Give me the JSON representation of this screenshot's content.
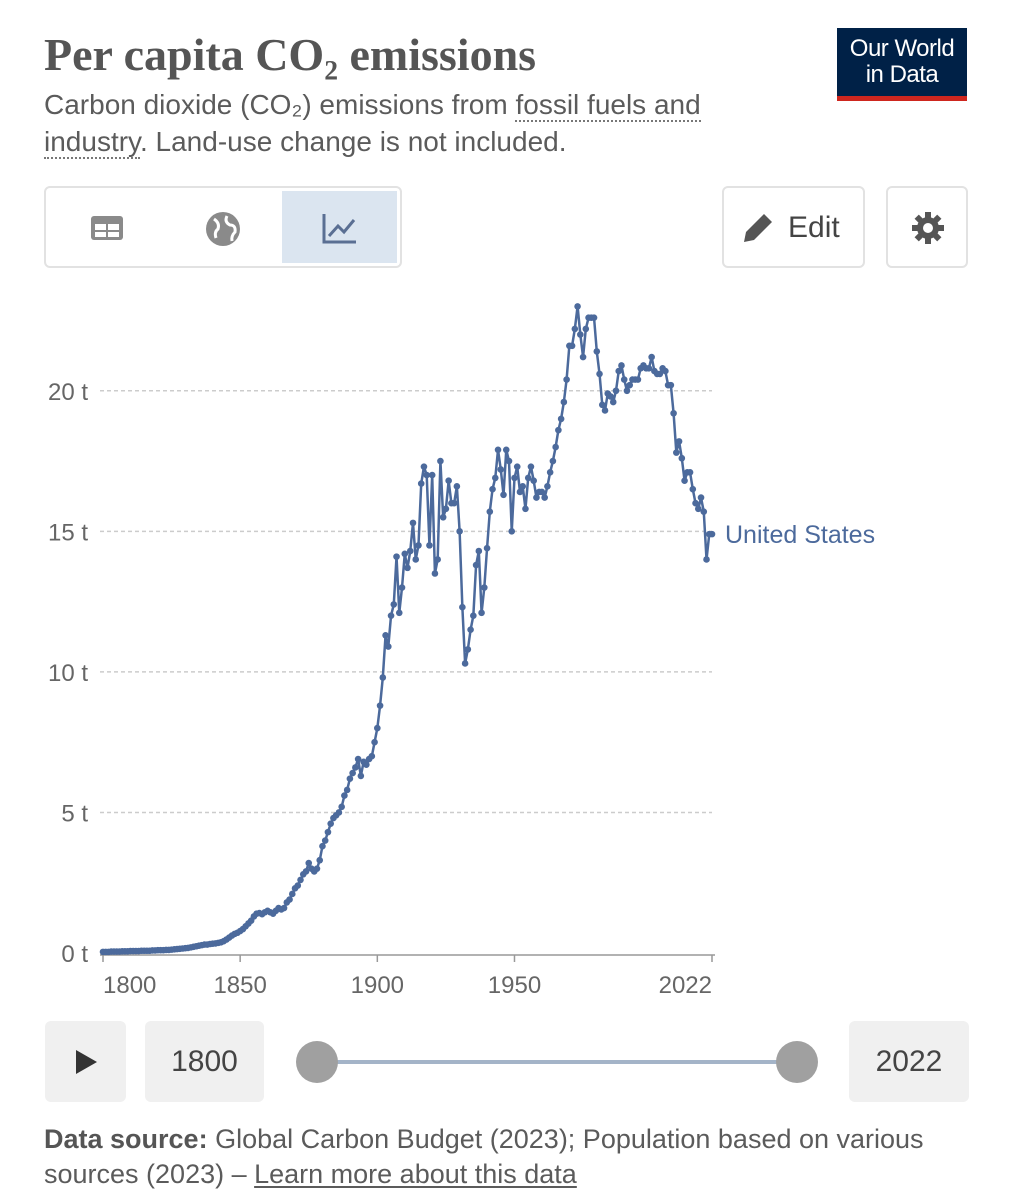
{
  "chart_data": {
    "type": "line",
    "title": "Per capita CO₂ emissions",
    "subtitle_parts": [
      "Carbon dioxide (CO₂) emissions from ",
      "fossil fuels and industry",
      ". Land-use change is not included."
    ],
    "source_label": "Data source:",
    "source_text": "Global Carbon Budget (2023); Population based on various sources (2023) – ",
    "source_link": "Learn more about this data",
    "xlim": [
      1800,
      2022
    ],
    "xticks": [
      1800,
      1850,
      1900,
      1950,
      2022
    ],
    "ylim": [
      0,
      23.3
    ],
    "yticks": [
      {
        "value": 0,
        "label": "0 t"
      },
      {
        "value": 5,
        "label": "5 t"
      },
      {
        "value": 10,
        "label": "10 t"
      },
      {
        "value": 15,
        "label": "15 t"
      },
      {
        "value": 20,
        "label": "20 t"
      }
    ],
    "grid": true,
    "x": [
      1800,
      1801,
      1802,
      1803,
      1804,
      1805,
      1806,
      1807,
      1808,
      1809,
      1810,
      1811,
      1812,
      1813,
      1814,
      1815,
      1816,
      1817,
      1818,
      1819,
      1820,
      1821,
      1822,
      1823,
      1824,
      1825,
      1826,
      1827,
      1828,
      1829,
      1830,
      1831,
      1832,
      1833,
      1834,
      1835,
      1836,
      1837,
      1838,
      1839,
      1840,
      1841,
      1842,
      1843,
      1844,
      1845,
      1846,
      1847,
      1848,
      1849,
      1850,
      1851,
      1852,
      1853,
      1854,
      1855,
      1856,
      1857,
      1858,
      1859,
      1860,
      1861,
      1862,
      1863,
      1864,
      1865,
      1866,
      1867,
      1868,
      1869,
      1870,
      1871,
      1872,
      1873,
      1874,
      1875,
      1876,
      1877,
      1878,
      1879,
      1880,
      1881,
      1882,
      1883,
      1884,
      1885,
      1886,
      1887,
      1888,
      1889,
      1890,
      1891,
      1892,
      1893,
      1894,
      1895,
      1896,
      1897,
      1898,
      1899,
      1900,
      1901,
      1902,
      1903,
      1904,
      1905,
      1906,
      1907,
      1908,
      1909,
      1910,
      1911,
      1912,
      1913,
      1914,
      1915,
      1916,
      1917,
      1918,
      1919,
      1920,
      1921,
      1922,
      1923,
      1924,
      1925,
      1926,
      1927,
      1928,
      1929,
      1930,
      1931,
      1932,
      1933,
      1934,
      1935,
      1936,
      1937,
      1938,
      1939,
      1940,
      1941,
      1942,
      1943,
      1944,
      1945,
      1946,
      1947,
      1948,
      1949,
      1950,
      1951,
      1952,
      1953,
      1954,
      1955,
      1956,
      1957,
      1958,
      1959,
      1960,
      1961,
      1962,
      1963,
      1964,
      1965,
      1966,
      1967,
      1968,
      1969,
      1970,
      1971,
      1972,
      1973,
      1974,
      1975,
      1976,
      1977,
      1978,
      1979,
      1980,
      1981,
      1982,
      1983,
      1984,
      1985,
      1986,
      1987,
      1988,
      1989,
      1990,
      1991,
      1992,
      1993,
      1994,
      1995,
      1996,
      1997,
      1998,
      1999,
      2000,
      2001,
      2002,
      2003,
      2004,
      2005,
      2006,
      2007,
      2008,
      2009,
      2010,
      2011,
      2012,
      2013,
      2014,
      2015,
      2016,
      2017,
      2018,
      2019,
      2020,
      2021,
      2022
    ],
    "series": [
      {
        "name": "United States",
        "color": "#4c6a9c",
        "values": [
          0.04,
          0.04,
          0.04,
          0.05,
          0.05,
          0.05,
          0.05,
          0.06,
          0.06,
          0.06,
          0.07,
          0.07,
          0.07,
          0.07,
          0.08,
          0.08,
          0.08,
          0.08,
          0.09,
          0.09,
          0.1,
          0.1,
          0.1,
          0.11,
          0.11,
          0.12,
          0.13,
          0.14,
          0.15,
          0.16,
          0.17,
          0.18,
          0.2,
          0.22,
          0.24,
          0.26,
          0.28,
          0.3,
          0.3,
          0.32,
          0.33,
          0.34,
          0.36,
          0.38,
          0.42,
          0.48,
          0.55,
          0.62,
          0.68,
          0.72,
          0.78,
          0.85,
          0.95,
          1.05,
          1.15,
          1.3,
          1.4,
          1.42,
          1.38,
          1.45,
          1.5,
          1.45,
          1.4,
          1.5,
          1.6,
          1.55,
          1.6,
          1.8,
          1.9,
          2.1,
          2.3,
          2.4,
          2.6,
          2.8,
          2.9,
          3.2,
          3.0,
          2.9,
          3.0,
          3.3,
          3.8,
          4.0,
          4.3,
          4.6,
          4.8,
          4.9,
          5.0,
          5.2,
          5.6,
          5.8,
          6.2,
          6.4,
          6.6,
          6.9,
          6.3,
          6.8,
          6.7,
          6.9,
          7.0,
          7.5,
          8.0,
          8.8,
          9.8,
          11.3,
          10.9,
          12.0,
          12.4,
          14.1,
          12.1,
          13.0,
          14.2,
          13.7,
          14.3,
          15.3,
          14.0,
          14.5,
          16.7,
          17.3,
          17.0,
          14.5,
          17.0,
          13.5,
          14.0,
          17.5,
          15.5,
          15.8,
          16.8,
          16.0,
          16.0,
          16.6,
          15.0,
          12.3,
          10.3,
          10.8,
          11.5,
          12.0,
          13.8,
          14.3,
          12.1,
          13.0,
          14.4,
          15.7,
          16.5,
          16.9,
          17.9,
          17.2,
          16.3,
          17.9,
          17.5,
          15.0,
          16.9,
          17.3,
          16.4,
          16.6,
          15.8,
          16.9,
          17.3,
          16.8,
          16.2,
          16.4,
          16.4,
          16.2,
          16.6,
          17.1,
          17.5,
          18.0,
          18.6,
          19.0,
          19.6,
          20.4,
          21.6,
          21.6,
          22.2,
          23.0,
          22.0,
          21.2,
          22.2,
          22.6,
          22.6,
          22.6,
          21.4,
          20.6,
          19.5,
          19.3,
          19.9,
          19.8,
          19.6,
          20.0,
          20.7,
          20.9,
          20.4,
          20.0,
          20.2,
          20.4,
          20.4,
          20.4,
          20.8,
          20.9,
          20.8,
          20.8,
          21.2,
          20.7,
          20.6,
          20.6,
          20.8,
          20.7,
          20.2,
          20.2,
          19.2,
          17.8,
          18.2,
          17.6,
          16.8,
          17.1,
          17.1,
          16.5,
          16.0,
          15.8,
          16.2,
          15.7,
          14.0,
          14.9,
          14.9
        ]
      }
    ]
  },
  "header": {
    "logo": [
      "Our World",
      "in Data"
    ]
  },
  "controls": {
    "edit": "Edit",
    "timeline_start": "1800",
    "timeline_end": "2022"
  }
}
